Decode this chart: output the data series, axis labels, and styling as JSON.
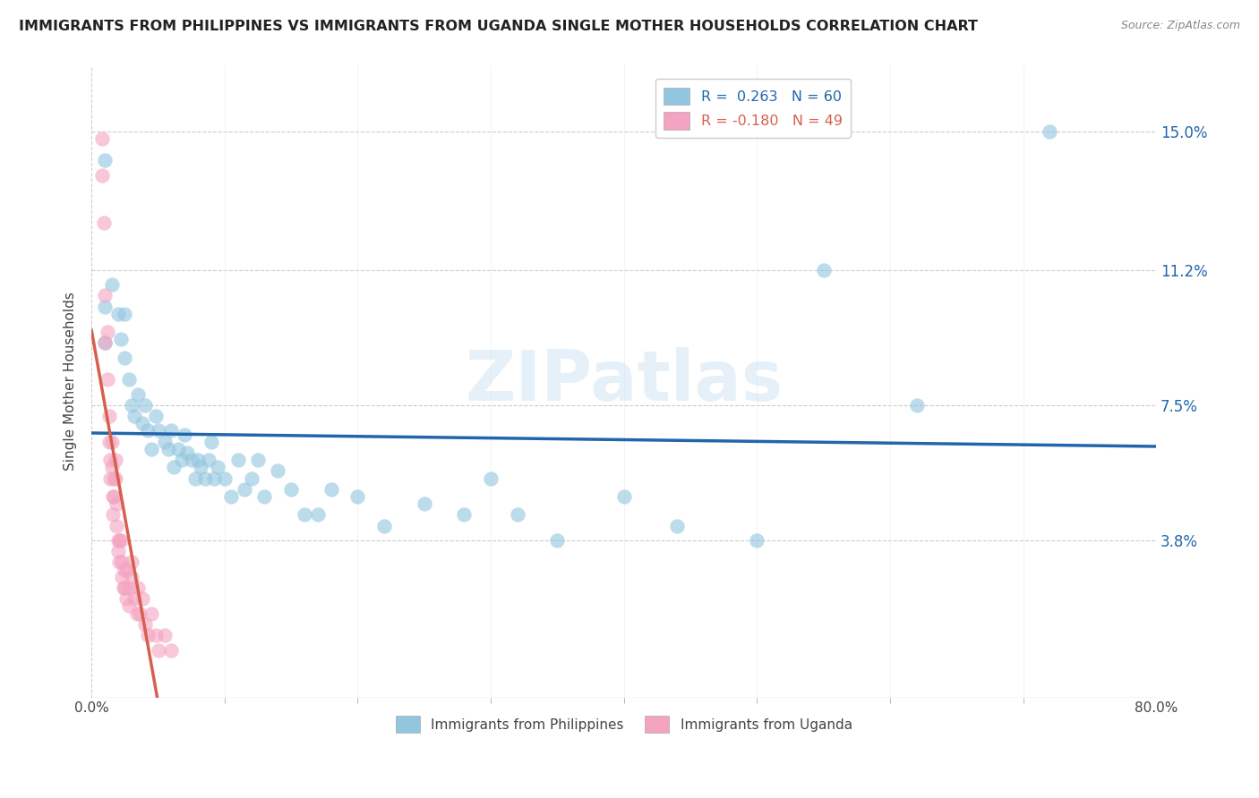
{
  "title": "IMMIGRANTS FROM PHILIPPINES VS IMMIGRANTS FROM UGANDA SINGLE MOTHER HOUSEHOLDS CORRELATION CHART",
  "source": "Source: ZipAtlas.com",
  "ylabel_label": "Single Mother Households",
  "y_tick_labels": [
    "3.8%",
    "7.5%",
    "11.2%",
    "15.0%"
  ],
  "y_tick_values": [
    0.038,
    0.075,
    0.112,
    0.15
  ],
  "xlim": [
    0.0,
    0.8
  ],
  "ylim": [
    -0.005,
    0.168
  ],
  "watermark": "ZIPatlas",
  "philippines_color": "#92c5de",
  "uganda_color": "#f4a3c0",
  "philippines_line_color": "#2166ac",
  "uganda_line_solid_color": "#d6604d",
  "uganda_line_dashed_color": "#f4a3c0",
  "philippines_scatter": [
    [
      0.01,
      0.142
    ],
    [
      0.01,
      0.102
    ],
    [
      0.01,
      0.092
    ],
    [
      0.015,
      0.108
    ],
    [
      0.02,
      0.1
    ],
    [
      0.022,
      0.093
    ],
    [
      0.025,
      0.1
    ],
    [
      0.025,
      0.088
    ],
    [
      0.028,
      0.082
    ],
    [
      0.03,
      0.075
    ],
    [
      0.032,
      0.072
    ],
    [
      0.035,
      0.078
    ],
    [
      0.038,
      0.07
    ],
    [
      0.04,
      0.075
    ],
    [
      0.042,
      0.068
    ],
    [
      0.045,
      0.063
    ],
    [
      0.048,
      0.072
    ],
    [
      0.05,
      0.068
    ],
    [
      0.055,
      0.065
    ],
    [
      0.058,
      0.063
    ],
    [
      0.06,
      0.068
    ],
    [
      0.062,
      0.058
    ],
    [
      0.065,
      0.063
    ],
    [
      0.068,
      0.06
    ],
    [
      0.07,
      0.067
    ],
    [
      0.072,
      0.062
    ],
    [
      0.075,
      0.06
    ],
    [
      0.078,
      0.055
    ],
    [
      0.08,
      0.06
    ],
    [
      0.082,
      0.058
    ],
    [
      0.085,
      0.055
    ],
    [
      0.088,
      0.06
    ],
    [
      0.09,
      0.065
    ],
    [
      0.092,
      0.055
    ],
    [
      0.095,
      0.058
    ],
    [
      0.1,
      0.055
    ],
    [
      0.105,
      0.05
    ],
    [
      0.11,
      0.06
    ],
    [
      0.115,
      0.052
    ],
    [
      0.12,
      0.055
    ],
    [
      0.125,
      0.06
    ],
    [
      0.13,
      0.05
    ],
    [
      0.14,
      0.057
    ],
    [
      0.15,
      0.052
    ],
    [
      0.16,
      0.045
    ],
    [
      0.17,
      0.045
    ],
    [
      0.18,
      0.052
    ],
    [
      0.2,
      0.05
    ],
    [
      0.22,
      0.042
    ],
    [
      0.25,
      0.048
    ],
    [
      0.28,
      0.045
    ],
    [
      0.3,
      0.055
    ],
    [
      0.32,
      0.045
    ],
    [
      0.35,
      0.038
    ],
    [
      0.4,
      0.05
    ],
    [
      0.44,
      0.042
    ],
    [
      0.5,
      0.038
    ],
    [
      0.55,
      0.112
    ],
    [
      0.62,
      0.075
    ],
    [
      0.72,
      0.15
    ]
  ],
  "uganda_scatter": [
    [
      0.008,
      0.148
    ],
    [
      0.008,
      0.138
    ],
    [
      0.009,
      0.125
    ],
    [
      0.01,
      0.105
    ],
    [
      0.01,
      0.092
    ],
    [
      0.012,
      0.095
    ],
    [
      0.012,
      0.082
    ],
    [
      0.013,
      0.072
    ],
    [
      0.013,
      0.065
    ],
    [
      0.014,
      0.06
    ],
    [
      0.014,
      0.055
    ],
    [
      0.015,
      0.065
    ],
    [
      0.015,
      0.058
    ],
    [
      0.016,
      0.05
    ],
    [
      0.016,
      0.045
    ],
    [
      0.017,
      0.055
    ],
    [
      0.017,
      0.05
    ],
    [
      0.018,
      0.06
    ],
    [
      0.018,
      0.055
    ],
    [
      0.019,
      0.048
    ],
    [
      0.019,
      0.042
    ],
    [
      0.02,
      0.038
    ],
    [
      0.02,
      0.035
    ],
    [
      0.021,
      0.038
    ],
    [
      0.021,
      0.032
    ],
    [
      0.022,
      0.038
    ],
    [
      0.023,
      0.032
    ],
    [
      0.023,
      0.028
    ],
    [
      0.024,
      0.025
    ],
    [
      0.025,
      0.03
    ],
    [
      0.025,
      0.025
    ],
    [
      0.026,
      0.022
    ],
    [
      0.027,
      0.03
    ],
    [
      0.028,
      0.025
    ],
    [
      0.028,
      0.02
    ],
    [
      0.03,
      0.032
    ],
    [
      0.03,
      0.028
    ],
    [
      0.032,
      0.022
    ],
    [
      0.034,
      0.018
    ],
    [
      0.035,
      0.025
    ],
    [
      0.036,
      0.018
    ],
    [
      0.038,
      0.022
    ],
    [
      0.04,
      0.015
    ],
    [
      0.042,
      0.012
    ],
    [
      0.045,
      0.018
    ],
    [
      0.048,
      0.012
    ],
    [
      0.05,
      0.008
    ],
    [
      0.055,
      0.012
    ],
    [
      0.06,
      0.008
    ]
  ]
}
